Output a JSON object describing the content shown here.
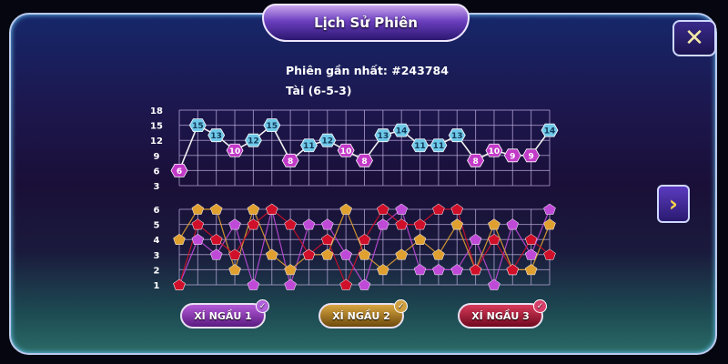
{
  "title": "Lịch Sử Phiên",
  "latest_session_label": "Phiên gần nhất: #243784",
  "latest_result": "Tài (6-5-3)",
  "close_icon": "close-icon",
  "next_icon": "chevron-right-icon",
  "buttons": [
    {
      "label": "XÍ NGẦU 1",
      "color": "#7a2a9e",
      "checked": true
    },
    {
      "label": "XÍ NGẦU 2",
      "color": "#9a6d18",
      "checked": true
    },
    {
      "label": "XÍ NGẦU 3",
      "color": "#a01638",
      "checked": true
    }
  ],
  "chart_data": [
    {
      "type": "line",
      "yticks": [
        "18",
        "15",
        "12",
        "9",
        "6",
        "3"
      ],
      "ylim": [
        3,
        18
      ],
      "grid": true,
      "threshold_tai": 11,
      "colors": {
        "tai": "#6fc8e8",
        "xiu": "#c23ac8"
      },
      "values": [
        6,
        15,
        13,
        10,
        12,
        15,
        8,
        11,
        12,
        10,
        8,
        13,
        14,
        11,
        11,
        13,
        8,
        10,
        9,
        9,
        14
      ]
    },
    {
      "type": "line",
      "yticks": [
        "6",
        "5",
        "4",
        "3",
        "2",
        "1"
      ],
      "ylim": [
        1,
        6
      ],
      "grid": true,
      "series": [
        {
          "name": "XÍ NGẦU 1",
          "color": "#c04ad8",
          "values": [
            1,
            4,
            3,
            5,
            1,
            6,
            1,
            5,
            5,
            3,
            1,
            5,
            6,
            2,
            2,
            2,
            4,
            1,
            5,
            3,
            6
          ]
        },
        {
          "name": "XÍ NGẦU 2",
          "color": "#e0a030",
          "values": [
            4,
            6,
            6,
            2,
            6,
            3,
            2,
            3,
            3,
            6,
            3,
            2,
            3,
            4,
            3,
            5,
            2,
            5,
            2,
            2,
            5
          ]
        },
        {
          "name": "XÍ NGẦU 3",
          "color": "#d0102a",
          "values": [
            1,
            5,
            4,
            3,
            5,
            6,
            5,
            3,
            4,
            1,
            4,
            6,
            5,
            5,
            6,
            6,
            2,
            4,
            2,
            4,
            3
          ]
        }
      ]
    }
  ]
}
